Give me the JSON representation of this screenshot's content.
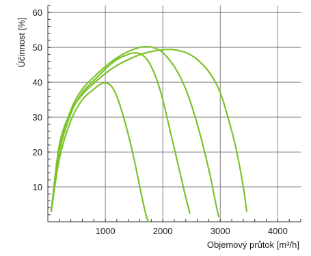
{
  "chart_data": {
    "type": "line",
    "title": "",
    "xlabel": "Objemový průtok [m³/h]",
    "ylabel": "Účinnost [%]",
    "xlim": [
      0,
      4400
    ],
    "ylim": [
      0,
      62
    ],
    "xticks": [
      1000,
      2000,
      3000,
      4000
    ],
    "xtick_labels": [
      "1000",
      "2000",
      "3000",
      "4000"
    ],
    "yticks": [
      10,
      20,
      30,
      40,
      50,
      60
    ],
    "ytick_labels": [
      "10",
      "20",
      "30",
      "40",
      "50",
      "60"
    ],
    "grid": "major x and y",
    "legend": "none",
    "line_color": "#7cc22a",
    "series": [
      {
        "x": [
          60,
          200,
          400,
          600,
          800,
          900,
          1000,
          1100,
          1200,
          1300,
          1400,
          1500,
          1600,
          1650,
          1700,
          1730,
          1750
        ],
        "y": [
          3,
          18,
          29,
          35,
          38,
          39.3,
          39.8,
          39,
          36,
          31,
          25,
          18,
          10,
          6,
          2.5,
          0.8,
          0
        ]
      },
      {
        "x": [
          60,
          200,
          400,
          600,
          800,
          1000,
          1200,
          1400,
          1500,
          1600,
          1700,
          1800,
          1900,
          2000,
          2100,
          2200,
          2300,
          2400,
          2470
        ],
        "y": [
          3,
          20,
          31,
          37,
          40.5,
          43.8,
          46.5,
          48,
          48.4,
          48.2,
          47,
          44.5,
          40.5,
          35,
          28,
          21,
          14,
          7,
          2.5
        ]
      },
      {
        "x": [
          60,
          200,
          400,
          600,
          800,
          1000,
          1200,
          1400,
          1600,
          1700,
          1800,
          1900,
          2000,
          2200,
          2400,
          2600,
          2800,
          2900,
          2970
        ],
        "y": [
          3,
          21,
          32,
          38,
          41.5,
          44.5,
          47,
          48.8,
          50,
          50.2,
          50.1,
          49.5,
          48.5,
          44.5,
          38,
          28,
          15,
          7,
          1.5
        ]
      },
      {
        "x": [
          60,
          200,
          400,
          600,
          800,
          1000,
          1200,
          1400,
          1600,
          1800,
          2000,
          2100,
          2200,
          2400,
          2600,
          2800,
          3000,
          3200,
          3300,
          3400,
          3460
        ],
        "y": [
          3,
          22,
          31.5,
          36.5,
          39.7,
          42.5,
          44.8,
          46.5,
          47.9,
          48.8,
          49.3,
          49.4,
          49.3,
          48.5,
          46.5,
          43,
          37,
          26,
          19,
          10,
          3
        ]
      }
    ]
  }
}
